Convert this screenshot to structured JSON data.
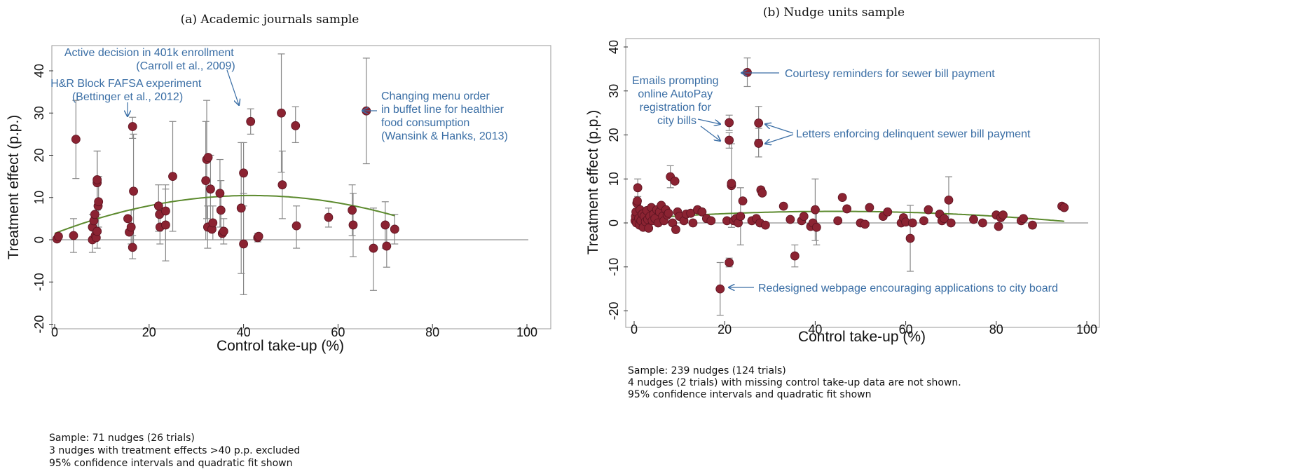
{
  "chart_data": [
    {
      "type": "scatter",
      "title": "(a) Academic journals sample",
      "xlabel": "Control take-up (%)",
      "ylabel": "Treatment effect (p.p.)",
      "xlim": [
        0,
        100
      ],
      "ylim": [
        -20,
        45
      ],
      "xticks": [
        "0",
        "20",
        "40",
        "60",
        "80",
        "100"
      ],
      "yticks": [
        "-20",
        "-10",
        "0",
        "10",
        "20",
        "30",
        "40"
      ],
      "grid": false,
      "colors": {
        "point": "#8b2332",
        "fit": "#5c8a2e",
        "ci": "#888888",
        "annotation": "#3a6ea5"
      },
      "fit": {
        "type": "quadratic",
        "a": -0.00518,
        "b": 0.4312,
        "c": 1.5
      },
      "points": [
        {
          "x": 0.5,
          "y": 0.2
        },
        {
          "x": 0.8,
          "y": 0.8
        },
        {
          "x": 4,
          "y": 1,
          "lo": -3,
          "hi": 5
        },
        {
          "x": 4.5,
          "y": 23.8,
          "lo": 14.5,
          "hi": 33
        },
        {
          "x": 8,
          "y": 0,
          "lo": -3,
          "hi": 3
        },
        {
          "x": 8,
          "y": 3,
          "lo": 0,
          "hi": 6
        },
        {
          "x": 8.3,
          "y": 4.5
        },
        {
          "x": 8.5,
          "y": 6
        },
        {
          "x": 8.6,
          "y": 1
        },
        {
          "x": 8.8,
          "y": 0.5
        },
        {
          "x": 9,
          "y": 2,
          "lo": -2,
          "hi": 6
        },
        {
          "x": 9.2,
          "y": 8
        },
        {
          "x": 9,
          "y": 13.5,
          "lo": 6,
          "hi": 21
        },
        {
          "x": 9,
          "y": 14.2,
          "lo": 7,
          "hi": 21
        },
        {
          "x": 9.3,
          "y": 9,
          "lo": 3,
          "hi": 15
        },
        {
          "x": 15.5,
          "y": 5
        },
        {
          "x": 15.8,
          "y": 1.8
        },
        {
          "x": 16.2,
          "y": 3,
          "lo": -1,
          "hi": 7
        },
        {
          "x": 16.5,
          "y": 26.8,
          "lo": 24,
          "hi": 29
        },
        {
          "x": 16.7,
          "y": 11.5,
          "lo": -2,
          "hi": 25
        },
        {
          "x": 16.5,
          "y": -1.8,
          "lo": -4.5,
          "hi": 1
        },
        {
          "x": 22,
          "y": 8,
          "lo": 2,
          "hi": 13
        },
        {
          "x": 22.2,
          "y": 6
        },
        {
          "x": 22.3,
          "y": 3,
          "lo": -1,
          "hi": 7
        },
        {
          "x": 23.5,
          "y": 6.8,
          "lo": 0,
          "hi": 13
        },
        {
          "x": 23.5,
          "y": 3.5,
          "lo": -5,
          "hi": 12
        },
        {
          "x": 25,
          "y": 15,
          "lo": 2,
          "hi": 28
        },
        {
          "x": 32,
          "y": 14,
          "lo": 0,
          "hi": 28
        },
        {
          "x": 32.2,
          "y": 19,
          "lo": 5,
          "hi": 33
        },
        {
          "x": 32.5,
          "y": 19.5
        },
        {
          "x": 32.4,
          "y": 3,
          "lo": -2,
          "hi": 8
        },
        {
          "x": 33,
          "y": 12,
          "lo": 4,
          "hi": 20
        },
        {
          "x": 33.3,
          "y": 2.5
        },
        {
          "x": 33.5,
          "y": 4,
          "lo": 0,
          "hi": 8
        },
        {
          "x": 35,
          "y": 11,
          "lo": 3,
          "hi": 19
        },
        {
          "x": 35.2,
          "y": 7,
          "lo": 0,
          "hi": 14
        },
        {
          "x": 35.5,
          "y": 1.5
        },
        {
          "x": 35.8,
          "y": 2,
          "lo": -1,
          "hi": 5
        },
        {
          "x": 39.5,
          "y": 7.5,
          "lo": -8,
          "hi": 23
        },
        {
          "x": 40,
          "y": 15.8,
          "lo": 8,
          "hi": 23
        },
        {
          "x": 40,
          "y": -1,
          "lo": -13,
          "hi": 11
        },
        {
          "x": 41.5,
          "y": 28,
          "lo": 25,
          "hi": 31
        },
        {
          "x": 43,
          "y": 0.5,
          "lo": -0.5,
          "hi": 1.5
        },
        {
          "x": 43.2,
          "y": 0.8
        },
        {
          "x": 48,
          "y": 30,
          "lo": 16,
          "hi": 44
        },
        {
          "x": 48.2,
          "y": 13,
          "lo": 5,
          "hi": 21
        },
        {
          "x": 51,
          "y": 27,
          "lo": 23,
          "hi": 31.5
        },
        {
          "x": 51.2,
          "y": 3.3,
          "lo": -2,
          "hi": 8
        },
        {
          "x": 58,
          "y": 5.3,
          "lo": 3,
          "hi": 7.5
        },
        {
          "x": 63,
          "y": 7,
          "lo": 1,
          "hi": 13
        },
        {
          "x": 63.2,
          "y": 3.5,
          "lo": -4,
          "hi": 11
        },
        {
          "x": 66,
          "y": 30.5,
          "lo": 18,
          "hi": 43
        },
        {
          "x": 67.5,
          "y": -2,
          "lo": -12,
          "hi": 7.5
        },
        {
          "x": 70,
          "y": 3.5,
          "lo": -2,
          "hi": 9
        },
        {
          "x": 70.3,
          "y": -1.5,
          "lo": -6.5,
          "hi": 3.5
        },
        {
          "x": 72,
          "y": 2.5,
          "lo": -1,
          "hi": 6
        }
      ],
      "annotations": [
        {
          "lines": [
            "Active decision in 401k enrollment",
            "(Carroll et al., 2009)"
          ],
          "target": [
            41.5,
            28
          ]
        },
        {
          "lines": [
            "H&R Block FAFSA experiment",
            "(Bettinger et al., 2012)"
          ],
          "target": [
            16.5,
            26.8
          ]
        },
        {
          "lines": [
            "Changing menu order",
            "in buffet line for healthier",
            "food consumption",
            "(Wansink & Hanks, 2013)"
          ],
          "target": [
            66,
            30.5
          ]
        }
      ],
      "notes": [
        "Sample: 71 nudges (26 trials)",
        "3 nudges with treatment effects >40 p.p. excluded",
        "95% confidence intervals and quadratic fit shown"
      ]
    },
    {
      "type": "scatter",
      "title": "(b) Nudge units sample",
      "xlabel": "Control take-up (%)",
      "ylabel": "Treatment effect (p.p.)",
      "xlim": [
        0,
        100
      ],
      "ylim": [
        -25,
        42
      ],
      "xticks": [
        "0",
        "20",
        "40",
        "60",
        "80",
        "100"
      ],
      "yticks": [
        "-20",
        "-10",
        "0",
        "10",
        "20",
        "30",
        "40"
      ],
      "grid": false,
      "colors": {
        "point": "#8b2332",
        "fit": "#5c8a2e",
        "ci": "#888888",
        "annotation": "#3a6ea5"
      },
      "fit": {
        "type": "quadratic",
        "a": -0.00088,
        "b": 0.078,
        "c": 0.9
      },
      "points": [
        {
          "x": 0.2,
          "y": 0.5
        },
        {
          "x": 0.3,
          "y": 1.5
        },
        {
          "x": 0.4,
          "y": 2.5
        },
        {
          "x": 0.5,
          "y": 0
        },
        {
          "x": 0.6,
          "y": 4.5
        },
        {
          "x": 0.7,
          "y": 5
        },
        {
          "x": 0.8,
          "y": 8,
          "lo": 6,
          "hi": 10
        },
        {
          "x": 1,
          "y": 1
        },
        {
          "x": 1.2,
          "y": -0.5
        },
        {
          "x": 1.3,
          "y": 3
        },
        {
          "x": 1.5,
          "y": 0.5
        },
        {
          "x": 1.8,
          "y": 2
        },
        {
          "x": 2,
          "y": -1
        },
        {
          "x": 2.2,
          "y": 1.5
        },
        {
          "x": 2.5,
          "y": 0.3
        },
        {
          "x": 2.8,
          "y": 2.8
        },
        {
          "x": 3,
          "y": 0.8
        },
        {
          "x": 3.2,
          "y": -1.2
        },
        {
          "x": 3.5,
          "y": 1.5
        },
        {
          "x": 3.8,
          "y": 3.5
        },
        {
          "x": 4,
          "y": 0.5
        },
        {
          "x": 4.3,
          "y": 2
        },
        {
          "x": 4.6,
          "y": 1
        },
        {
          "x": 5,
          "y": 3
        },
        {
          "x": 5.3,
          "y": 0
        },
        {
          "x": 5.6,
          "y": 2.5
        },
        {
          "x": 6,
          "y": 4
        },
        {
          "x": 6.3,
          "y": 1.5
        },
        {
          "x": 6.6,
          "y": 0.5
        },
        {
          "x": 7,
          "y": 3
        },
        {
          "x": 7.3,
          "y": 1.8
        },
        {
          "x": 7.6,
          "y": 2.2
        },
        {
          "x": 8,
          "y": 10.5,
          "lo": 8,
          "hi": 13
        },
        {
          "x": 8.5,
          "y": 0
        },
        {
          "x": 9,
          "y": 9.5
        },
        {
          "x": 9.2,
          "y": -1.5
        },
        {
          "x": 9.6,
          "y": 2.5
        },
        {
          "x": 10,
          "y": 1.5
        },
        {
          "x": 11,
          "y": 0.5
        },
        {
          "x": 11.5,
          "y": 2
        },
        {
          "x": 12.5,
          "y": 2.2
        },
        {
          "x": 13,
          "y": 0
        },
        {
          "x": 14,
          "y": 3
        },
        {
          "x": 15,
          "y": 2.5
        },
        {
          "x": 16,
          "y": 1
        },
        {
          "x": 17,
          "y": 0.5
        },
        {
          "x": 19,
          "y": -15,
          "lo": -21,
          "hi": -9
        },
        {
          "x": 20.5,
          "y": 0.5
        },
        {
          "x": 21,
          "y": 22.8,
          "lo": 21,
          "hi": 24.5
        },
        {
          "x": 21,
          "y": 18.8,
          "lo": 17,
          "hi": 20.5
        },
        {
          "x": 21,
          "y": -9,
          "lo": -10,
          "hi": -8
        },
        {
          "x": 21.5,
          "y": 8.5,
          "lo": -1,
          "hi": 18
        },
        {
          "x": 21.5,
          "y": 9
        },
        {
          "x": 22,
          "y": 0.5
        },
        {
          "x": 22.5,
          "y": 1
        },
        {
          "x": 23,
          "y": 0
        },
        {
          "x": 23.5,
          "y": 1.5,
          "lo": -5,
          "hi": 8
        },
        {
          "x": 24,
          "y": 5
        },
        {
          "x": 25,
          "y": 34.2,
          "lo": 31,
          "hi": 37.5
        },
        {
          "x": 26,
          "y": 0.5
        },
        {
          "x": 27,
          "y": 1
        },
        {
          "x": 27.5,
          "y": 22.7,
          "lo": 19,
          "hi": 26.5
        },
        {
          "x": 27.5,
          "y": 18.1,
          "lo": 15,
          "hi": 21.5
        },
        {
          "x": 27.8,
          "y": 0
        },
        {
          "x": 28,
          "y": 7.5
        },
        {
          "x": 28.3,
          "y": 6.8
        },
        {
          "x": 29,
          "y": -0.5
        },
        {
          "x": 33,
          "y": 3.8
        },
        {
          "x": 34.5,
          "y": 0.8
        },
        {
          "x": 35.5,
          "y": -7.5,
          "lo": -10,
          "hi": -5
        },
        {
          "x": 37,
          "y": 0.5
        },
        {
          "x": 37.5,
          "y": 1.5
        },
        {
          "x": 39,
          "y": -0.8
        },
        {
          "x": 39.5,
          "y": 0
        },
        {
          "x": 40,
          "y": 3,
          "lo": -4,
          "hi": 10
        },
        {
          "x": 40.3,
          "y": -1,
          "lo": -5,
          "hi": 3
        },
        {
          "x": 45,
          "y": 0.5
        },
        {
          "x": 46,
          "y": 5.8
        },
        {
          "x": 47,
          "y": 3.2
        },
        {
          "x": 50,
          "y": 0
        },
        {
          "x": 51,
          "y": -0.3
        },
        {
          "x": 52,
          "y": 3.5
        },
        {
          "x": 55,
          "y": 1.5
        },
        {
          "x": 56,
          "y": 2.5
        },
        {
          "x": 59,
          "y": 0
        },
        {
          "x": 59.5,
          "y": 1.2
        },
        {
          "x": 60,
          "y": 0.2
        },
        {
          "x": 61,
          "y": -3.5,
          "lo": -11,
          "hi": 4
        },
        {
          "x": 61.5,
          "y": 0
        },
        {
          "x": 64,
          "y": 0.5
        },
        {
          "x": 65,
          "y": 3
        },
        {
          "x": 67.5,
          "y": 2
        },
        {
          "x": 68,
          "y": 0.5
        },
        {
          "x": 68.5,
          "y": 1
        },
        {
          "x": 69.5,
          "y": 5.2,
          "lo": 0,
          "hi": 10.5
        },
        {
          "x": 70,
          "y": 0
        },
        {
          "x": 75,
          "y": 0.8
        },
        {
          "x": 77,
          "y": 0
        },
        {
          "x": 80,
          "y": 1.8
        },
        {
          "x": 80.5,
          "y": -0.8
        },
        {
          "x": 81,
          "y": 1.2
        },
        {
          "x": 81.5,
          "y": 1.8
        },
        {
          "x": 85.5,
          "y": 0.5
        },
        {
          "x": 86,
          "y": 1
        },
        {
          "x": 88,
          "y": -0.5
        },
        {
          "x": 94.5,
          "y": 3.8
        },
        {
          "x": 95,
          "y": 3.5
        }
      ],
      "annotations": [
        {
          "lines": [
            "Courtesy reminders for sewer bill payment"
          ],
          "target": [
            25,
            34.2
          ]
        },
        {
          "lines": [
            "Emails prompting",
            "online AutoPay",
            "registration for",
            "city bills"
          ],
          "target": [
            21,
            22.8
          ]
        },
        {
          "lines": [
            "Letters enforcing delinquent sewer bill payment"
          ],
          "target": [
            27.5,
            22.7
          ]
        },
        {
          "lines": [
            "Redesigned webpage encouraging applications to city board"
          ],
          "target": [
            19,
            -15
          ]
        }
      ],
      "notes": [
        "Sample: 239 nudges (124 trials)",
        "4 nudges (2 trials) with missing control take-up data are not shown.",
        "95% confidence intervals and quadratic fit shown"
      ]
    }
  ]
}
